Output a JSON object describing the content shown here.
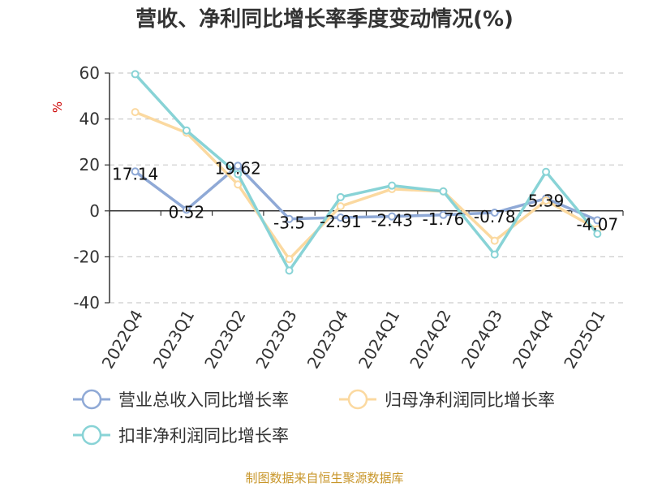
{
  "chart_data": {
    "type": "line",
    "title": "营收、净利同比增长率季度变动情况(%)",
    "ylabel": "%",
    "xlabel": "",
    "ylim": [
      -40,
      60
    ],
    "yticks": [
      60,
      40,
      20,
      0,
      -20,
      -40
    ],
    "grid": true,
    "legend_position": "bottom",
    "categories": [
      "2022Q4",
      "2023Q1",
      "2023Q2",
      "2023Q3",
      "2023Q4",
      "2024Q1",
      "2024Q2",
      "2024Q3",
      "2024Q4",
      "2025Q1"
    ],
    "series": [
      {
        "name": "营业总收入同比增长率",
        "color": "#8fa9d6",
        "values": [
          17.14,
          0.52,
          19.62,
          -3.5,
          -2.91,
          -2.43,
          -1.76,
          -0.78,
          5.39,
          -4.07
        ],
        "labels": [
          "17.14",
          "0.52",
          "19.62",
          "-3.5",
          "-2.91",
          "-2.43",
          "-1.76",
          "-0.78",
          "5.39",
          "-4.07"
        ]
      },
      {
        "name": "归母净利润同比增长率",
        "color": "#fbd9a0",
        "values": [
          43,
          34,
          11.5,
          -21,
          2,
          9.5,
          8.5,
          -13,
          4.5,
          -8
        ]
      },
      {
        "name": "扣非净利润同比增长率",
        "color": "#88d3d6",
        "values": [
          59.5,
          35,
          16,
          -26,
          6,
          11,
          8.5,
          -19,
          17,
          -10
        ]
      }
    ],
    "source": "制图数据来自恒生聚源数据库"
  }
}
